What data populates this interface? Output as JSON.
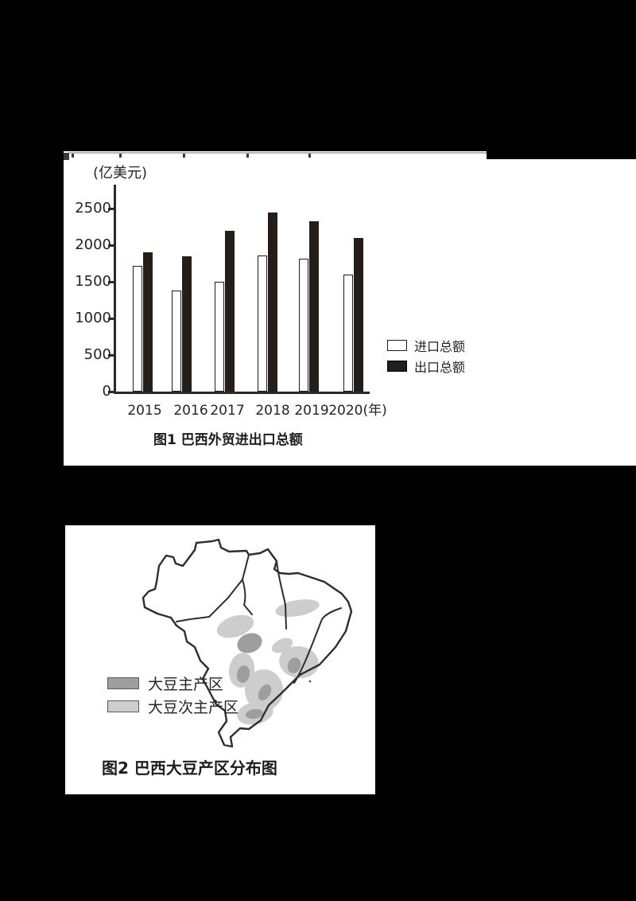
{
  "page": {
    "background": "#000000",
    "panel_background": "#ffffff"
  },
  "figure1": {
    "unit_label": "(亿美元)",
    "caption": "图1 巴西外贸进出口总额",
    "legend": [
      {
        "label": "进口总额",
        "style": "open"
      },
      {
        "label": "出口总额",
        "style": "solid"
      }
    ],
    "chart_data": {
      "type": "bar",
      "categories": [
        "2015",
        "2016",
        "2017",
        "2018",
        "2019",
        "2020(年)"
      ],
      "series": [
        {
          "name": "进口总额",
          "values": [
            1720,
            1380,
            1500,
            1860,
            1810,
            1600
          ],
          "color": "#ffffff"
        },
        {
          "name": "出口总额",
          "values": [
            1900,
            1850,
            2200,
            2450,
            2330,
            2100
          ],
          "color": "#241d18"
        }
      ],
      "ylabel": "(亿美元)",
      "yticks": [
        0,
        500,
        1000,
        1500,
        2000,
        2500
      ],
      "ylim": [
        0,
        2750
      ],
      "grid": false,
      "legend_position": "right"
    }
  },
  "figure2": {
    "caption": "图2 巴西大豆产区分布图",
    "legend": [
      {
        "label": "大豆主产区",
        "color": "#9e9e9e"
      },
      {
        "label": "大豆次主产区",
        "color": "#cdcdcd"
      }
    ]
  }
}
